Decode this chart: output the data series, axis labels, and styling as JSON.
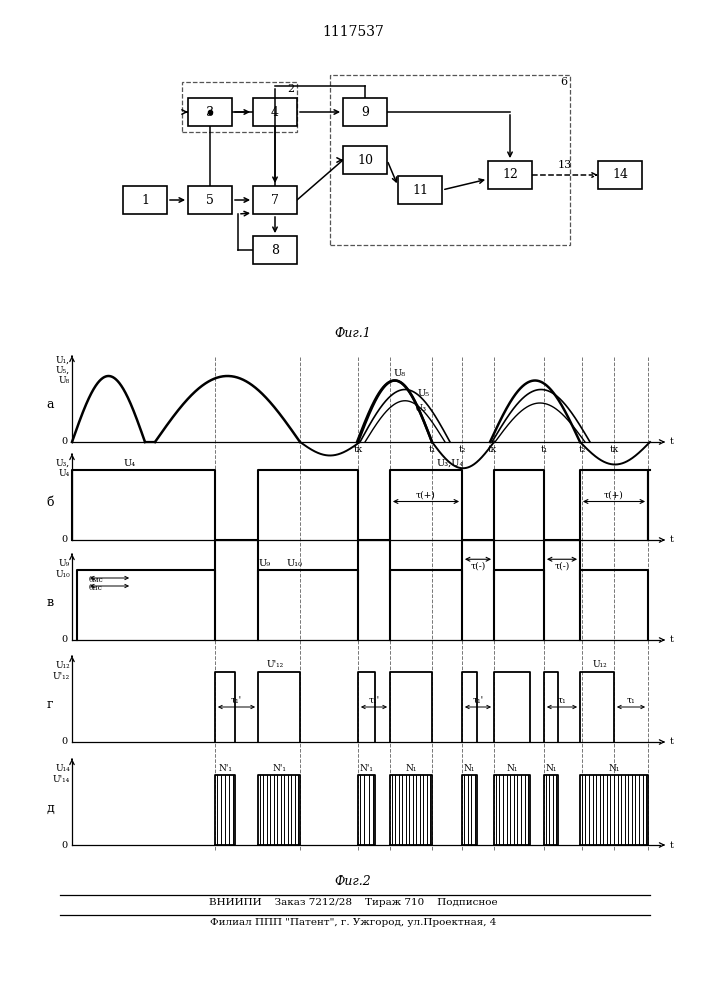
{
  "title": "1117537",
  "fig1_caption": "Фиг.1",
  "fig2_caption": "Фиг.2",
  "footer_line1": "ВНИИПИ    Заказ 7212/28    Тираж 710    Подписное",
  "footer_line2": "Филиал ППП \"Патент\", г. Ужгород, ул.Проектная, 4",
  "bg_color": "#ffffff",
  "lc": "#000000"
}
